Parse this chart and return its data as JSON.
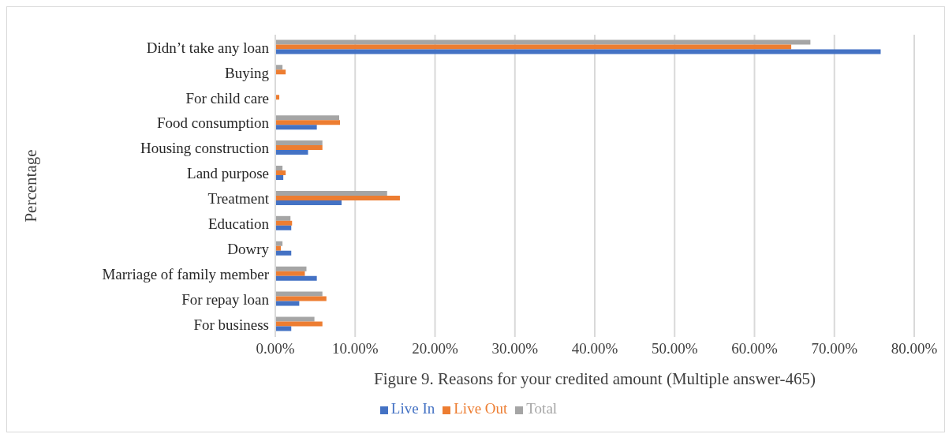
{
  "chart_data": {
    "type": "bar",
    "orientation": "horizontal",
    "ylabel": "Percentage",
    "xlabel": "Figure 9. Reasons for your credited amount (Multiple answer-465)",
    "categories": [
      "Didn’t take any loan",
      "Buying",
      "For child care",
      "Food consumption",
      "Housing construction",
      "Land purpose",
      "Treatment",
      "Education",
      "Dowry",
      "Marriage of family member",
      "For repay loan",
      "For business"
    ],
    "series": [
      {
        "name": "Total",
        "color": "#a5a5a5",
        "values": [
          67.0,
          0.9,
          0,
          8.0,
          5.9,
          0.9,
          14.0,
          1.9,
          0.9,
          3.9,
          5.9,
          4.9
        ]
      },
      {
        "name": "Live Out",
        "color": "#ed7d31",
        "values": [
          64.6,
          1.3,
          0.5,
          8.1,
          5.9,
          1.3,
          15.6,
          2.1,
          0.7,
          3.7,
          6.4,
          5.9
        ]
      },
      {
        "name": "Live In",
        "color": "#4472c4",
        "values": [
          75.8,
          0,
          0,
          5.2,
          4.1,
          1.0,
          8.3,
          2.0,
          2.0,
          5.2,
          3.0,
          2.0
        ]
      }
    ],
    "xlim": [
      0,
      80
    ],
    "xticks": [
      {
        "value": 0,
        "label": "0.00%"
      },
      {
        "value": 10,
        "label": "10.00%"
      },
      {
        "value": 20,
        "label": "20.00%"
      },
      {
        "value": 30,
        "label": "30.00%"
      },
      {
        "value": 40,
        "label": "40.00%"
      },
      {
        "value": 50,
        "label": "50.00%"
      },
      {
        "value": 60,
        "label": "60.00%"
      },
      {
        "value": 70,
        "label": "70.00%"
      },
      {
        "value": 80,
        "label": "80.00%"
      }
    ],
    "grid": "x",
    "legend": "bottom"
  }
}
